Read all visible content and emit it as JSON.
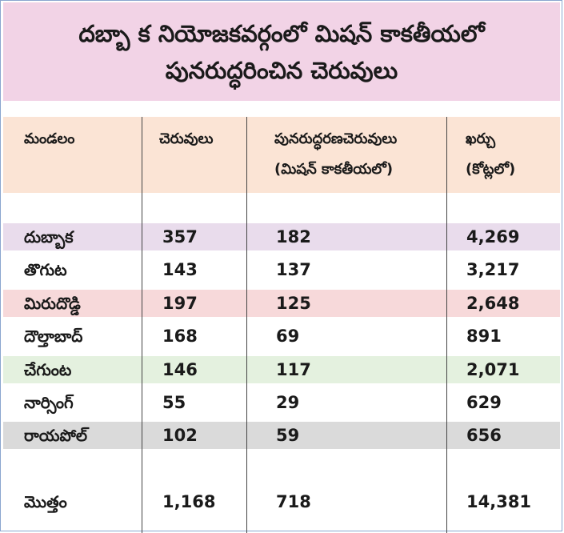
{
  "title": {
    "line1": "దబ్బా క నియోజకవర్గంలో మిషన్ కాకతీయలో",
    "line2": "పునరుద్ధరించిన చెరువులు"
  },
  "headers": {
    "mandal": "మండలం",
    "ponds": "చెరువులు",
    "restored_line1": "పునరుద్ధరణచెరువులు",
    "restored_line2": "(మిషన్ కాకతీయలో)",
    "cost_line1": "ఖర్చు",
    "cost_line2": "(కోట్లలో)"
  },
  "rows": [
    {
      "mandal": "దుబ్బాక",
      "ponds": "357",
      "restored": "182",
      "cost": "4,269",
      "bg": "#e9dcec"
    },
    {
      "mandal": "తొగుట",
      "ponds": "143",
      "restored": "137",
      "cost": "3,217",
      "bg": "#ffffff"
    },
    {
      "mandal": "మిరుదొడ్డి",
      "ponds": "197",
      "restored": "125",
      "cost": "2,648",
      "bg": "#f7d9da"
    },
    {
      "mandal": "దౌల్తాబాద్",
      "ponds": "168",
      "restored": "69",
      "cost": "891",
      "bg": "#ffffff"
    },
    {
      "mandal": "చేగుంట",
      "ponds": "146",
      "restored": "117",
      "cost": "2,071",
      "bg": "#e4f1df"
    },
    {
      "mandal": "నార్సింగ్",
      "ponds": "55",
      "restored": "29",
      "cost": "629",
      "bg": "#ffffff"
    },
    {
      "mandal": "రాయపోల్",
      "ponds": "102",
      "restored": "59",
      "cost": "656",
      "bg": "#dadada"
    }
  ],
  "total": {
    "mandal": "మొత్తం",
    "ponds": "1,168",
    "restored": "718",
    "cost": "14,381"
  }
}
